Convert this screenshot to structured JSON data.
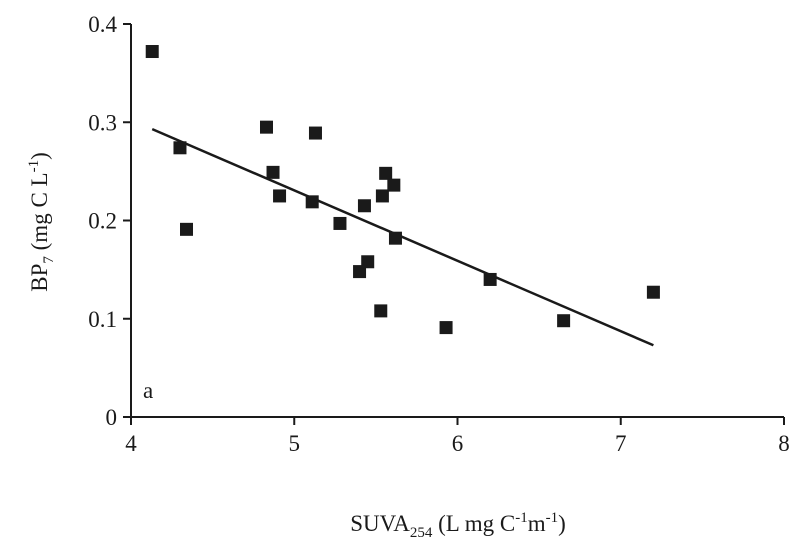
{
  "chart_data": {
    "type": "scatter",
    "panel_label": "a",
    "xlabel": {
      "base": "SUVA",
      "sub": "254",
      "rest_1": " (L mg C",
      "sup_1": "-1",
      "rest_2": "m",
      "sup_2": "-1",
      "rest_3": ")"
    },
    "ylabel": {
      "base": "BP",
      "sub": "7",
      "rest_1": " (mg C L",
      "sup_1": "-1",
      "rest_2": ")"
    },
    "xlim": [
      4,
      8
    ],
    "ylim": [
      0,
      0.4
    ],
    "xticks": [
      4,
      5,
      6,
      7,
      8
    ],
    "yticks": [
      0,
      0.1,
      0.2,
      0.3,
      0.4
    ],
    "xtick_labels": [
      "4",
      "5",
      "6",
      "7",
      "8"
    ],
    "ytick_labels": [
      "0",
      "0.1",
      "0.2",
      "0.3",
      "0.4"
    ],
    "grid": false,
    "legend": "none",
    "marker": "filled-square",
    "color": "#1a1a1a",
    "points": [
      {
        "x": 4.13,
        "y": 0.372
      },
      {
        "x": 4.3,
        "y": 0.274
      },
      {
        "x": 4.34,
        "y": 0.191
      },
      {
        "x": 4.83,
        "y": 0.295
      },
      {
        "x": 4.87,
        "y": 0.249
      },
      {
        "x": 4.91,
        "y": 0.225
      },
      {
        "x": 5.11,
        "y": 0.219
      },
      {
        "x": 5.13,
        "y": 0.289
      },
      {
        "x": 5.28,
        "y": 0.197
      },
      {
        "x": 5.4,
        "y": 0.148
      },
      {
        "x": 5.43,
        "y": 0.215
      },
      {
        "x": 5.45,
        "y": 0.158
      },
      {
        "x": 5.53,
        "y": 0.108
      },
      {
        "x": 5.54,
        "y": 0.225
      },
      {
        "x": 5.56,
        "y": 0.248
      },
      {
        "x": 5.61,
        "y": 0.236
      },
      {
        "x": 5.62,
        "y": 0.182
      },
      {
        "x": 5.93,
        "y": 0.091
      },
      {
        "x": 6.2,
        "y": 0.14
      },
      {
        "x": 6.65,
        "y": 0.098
      },
      {
        "x": 7.2,
        "y": 0.127
      }
    ],
    "trendline": {
      "x1": 4.13,
      "y1": 0.293,
      "x2": 7.2,
      "y2": 0.073
    }
  }
}
